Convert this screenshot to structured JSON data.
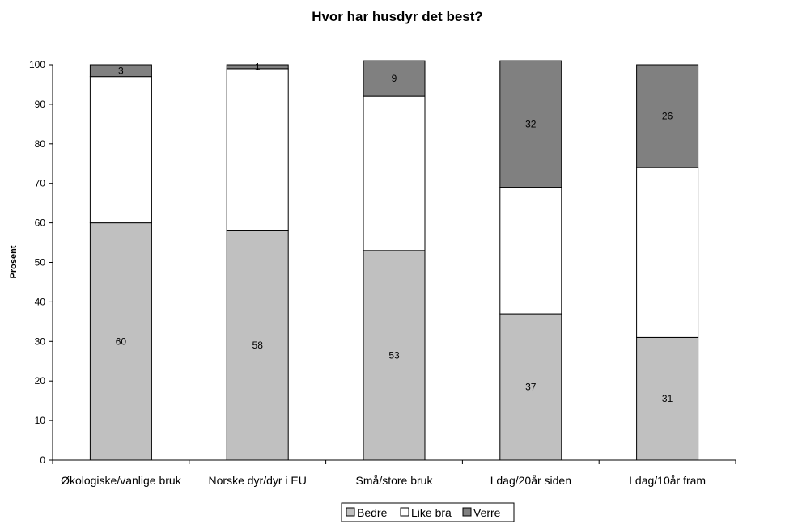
{
  "chart_data": {
    "type": "bar",
    "stacked": true,
    "title": "Hvor har husdyr det best?",
    "xlabel": "",
    "ylabel": "Prosent",
    "ylim": [
      0,
      100
    ],
    "yticks": [
      0,
      10,
      20,
      30,
      40,
      50,
      60,
      70,
      80,
      90,
      100
    ],
    "categories": [
      "Økologiske/vanlige bruk",
      "Norske dyr/dyr i EU",
      "Små/store bruk",
      "I dag/20år siden",
      "I dag/10år fram"
    ],
    "series": [
      {
        "name": "Bedre",
        "values": [
          60,
          58,
          53,
          37,
          31
        ],
        "labels": [
          "60",
          "58",
          "53",
          "37",
          "31"
        ],
        "color": "#c0c0c0"
      },
      {
        "name": "Like bra",
        "values": [
          37,
          41,
          39,
          32,
          43
        ],
        "labels": [
          "",
          "",
          "",
          "",
          ""
        ],
        "color": "#ffffff"
      },
      {
        "name": "Verre",
        "values": [
          3,
          1,
          9,
          32,
          26
        ],
        "labels": [
          "3",
          "1",
          "9",
          "32",
          "26"
        ],
        "color": "#808080"
      }
    ],
    "grid": false,
    "legend_position": "bottom"
  }
}
